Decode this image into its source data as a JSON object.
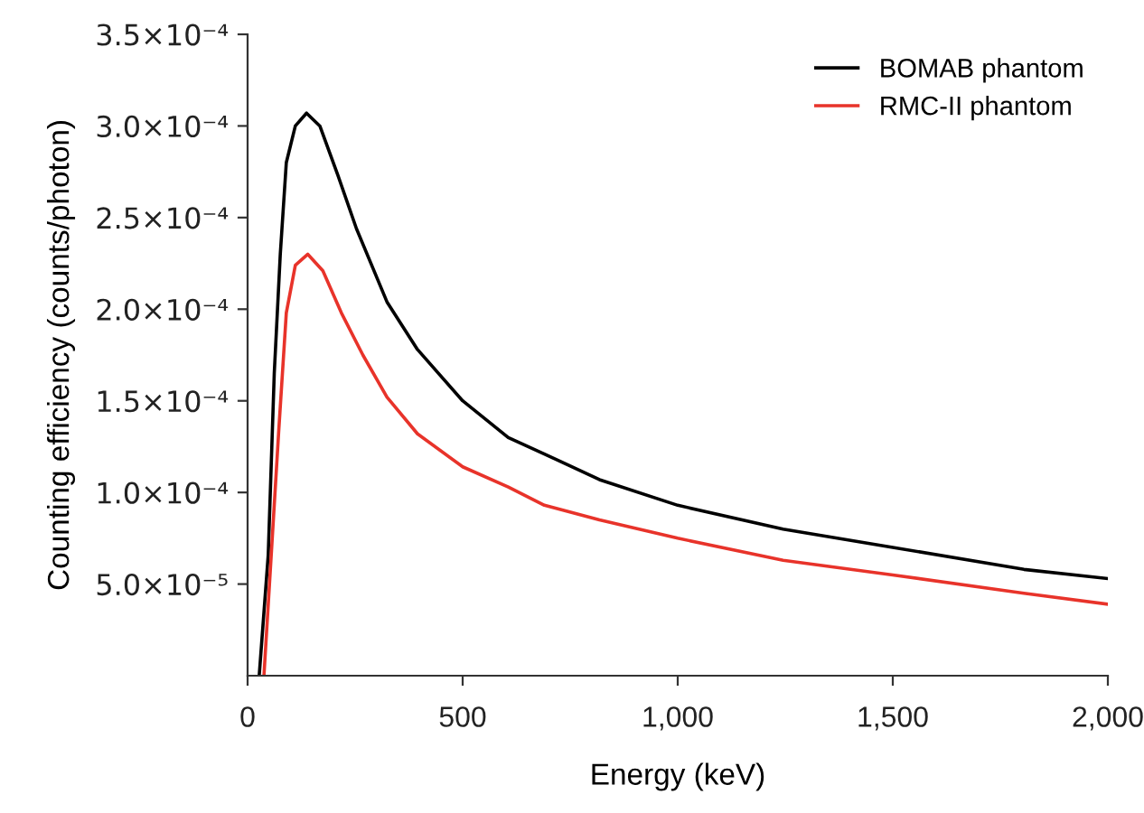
{
  "chart_data": {
    "type": "line",
    "xlabel": "Energy (keV)",
    "ylabel": "Counting efficiency (counts/photon)",
    "xlim": [
      0,
      2000
    ],
    "ylim": [
      0,
      0.00035
    ],
    "xticks": [
      0,
      500,
      {
        "value": 1000,
        "label": "1,000"
      },
      {
        "value": 1500,
        "label": "1,500"
      },
      {
        "value": 2000,
        "label": "2,000"
      }
    ],
    "yticks": [
      {
        "value": 5e-05,
        "label": "5.0×10⁻⁵"
      },
      {
        "value": 0.0001,
        "label": "1.0×10⁻⁴"
      },
      {
        "value": 0.00015,
        "label": "1.5×10⁻⁴"
      },
      {
        "value": 0.0002,
        "label": "2.0×10⁻⁴"
      },
      {
        "value": 0.00025,
        "label": "2.5×10⁻⁴"
      },
      {
        "value": 0.0003,
        "label": "3.0×10⁻⁴"
      },
      {
        "value": 0.00035,
        "label": "3.5×10⁻⁴"
      }
    ],
    "grid": false,
    "legend": "top right",
    "marker": "none",
    "line_style": "solid",
    "series": [
      {
        "name": "BOMAB phantom",
        "color": "#000000",
        "x": [
          27,
          48,
          62,
          76,
          90,
          111,
          137,
          168,
          210,
          253,
          324,
          395,
          500,
          606,
          690,
          818,
          1000,
          1245,
          1500,
          1805,
          2000
        ],
        "values": [
          0,
          6.6e-05,
          0.000165,
          0.00023,
          0.00028,
          0.0003,
          0.000307,
          0.0003,
          0.000273,
          0.000244,
          0.000204,
          0.000178,
          0.00015,
          0.00013,
          0.000121,
          0.000107,
          9.3e-05,
          8e-05,
          7e-05,
          5.8e-05,
          5.3e-05
        ]
      },
      {
        "name": "RMC-II phantom",
        "color": "#e8332a",
        "x": [
          38,
          55,
          72,
          90,
          111,
          140,
          175,
          218,
          268,
          324,
          395,
          500,
          606,
          690,
          818,
          1000,
          1245,
          1500,
          1805,
          2000
        ],
        "values": [
          0,
          6.6e-05,
          0.000132,
          0.000198,
          0.000224,
          0.00023,
          0.000221,
          0.000198,
          0.000175,
          0.000152,
          0.000132,
          0.000114,
          0.000103,
          9.3e-05,
          8.5e-05,
          7.5e-05,
          6.3e-05,
          5.5e-05,
          4.5e-05,
          3.9e-05
        ]
      }
    ]
  }
}
